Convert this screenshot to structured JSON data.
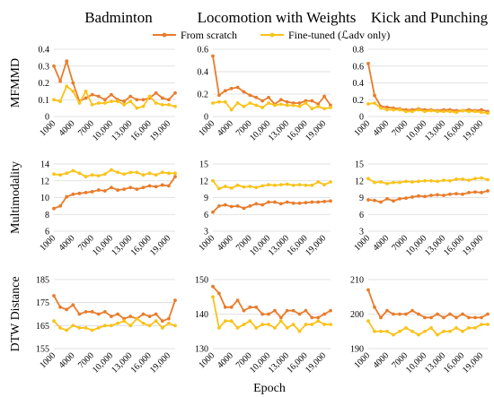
{
  "chart_data": {
    "type": "line",
    "x_tick_labels": [
      "1000",
      "4000",
      "7000",
      "10,000",
      "13,000",
      "16,000",
      "19,000"
    ],
    "x_title": "Epoch",
    "columns": [
      "Badminton",
      "Locomotion with Weights",
      "Kick and Punching"
    ],
    "rows": [
      "MFMMD",
      "Multimodality",
      "DTW Distance"
    ],
    "legend": {
      "placement": "top-center",
      "items": [
        {
          "label": "From scratch",
          "color": "#E87C2C"
        },
        {
          "label": "Fine-tuned (ℒadv only)",
          "color": "#F9C31B"
        }
      ]
    },
    "x": [
      1000,
      2000,
      3000,
      4000,
      5000,
      6000,
      7000,
      8000,
      9000,
      10000,
      11000,
      12000,
      13000,
      14000,
      15000,
      16000,
      17000,
      18000,
      19000,
      20000
    ],
    "panels": [
      {
        "column": "Badminton",
        "row": "MFMMD",
        "yticks": [
          "0",
          "0.1",
          "0.2",
          "0.3",
          "0.4"
        ],
        "ylim": [
          0,
          0.4
        ],
        "series": [
          {
            "values": [
              0.3,
              0.21,
              0.33,
              0.2,
              0.09,
              0.11,
              0.13,
              0.12,
              0.1,
              0.13,
              0.1,
              0.09,
              0.12,
              0.1,
              0.1,
              0.11,
              0.14,
              0.11,
              0.1,
              0.14
            ]
          },
          {
            "values": [
              0.1,
              0.09,
              0.18,
              0.15,
              0.08,
              0.15,
              0.07,
              0.08,
              0.08,
              0.09,
              0.09,
              0.07,
              0.09,
              0.05,
              0.06,
              0.12,
              0.08,
              0.07,
              0.07,
              0.06
            ]
          }
        ]
      },
      {
        "column": "Locomotion with Weights",
        "row": "MFMMD",
        "yticks": [
          "0",
          "0.2",
          "0.4",
          "0.6"
        ],
        "ylim": [
          0,
          0.6
        ],
        "series": [
          {
            "values": [
              0.54,
              0.19,
              0.23,
              0.25,
              0.26,
              0.22,
              0.19,
              0.17,
              0.14,
              0.17,
              0.11,
              0.15,
              0.13,
              0.12,
              0.12,
              0.14,
              0.14,
              0.11,
              0.18,
              0.1
            ]
          },
          {
            "values": [
              0.12,
              0.13,
              0.13,
              0.06,
              0.12,
              0.09,
              0.12,
              0.1,
              0.08,
              0.12,
              0.1,
              0.11,
              0.1,
              0.1,
              0.09,
              0.12,
              0.07,
              0.09,
              0.07,
              0.08
            ]
          }
        ]
      },
      {
        "column": "Kick and Punching",
        "row": "MFMMD",
        "yticks": [
          "0",
          "0.2",
          "0.4",
          "0.6",
          "0.8"
        ],
        "ylim": [
          0,
          0.8
        ],
        "series": [
          {
            "values": [
              0.63,
              0.25,
              0.12,
              0.11,
              0.1,
              0.09,
              0.08,
              0.08,
              0.09,
              0.08,
              0.08,
              0.07,
              0.08,
              0.08,
              0.07,
              0.07,
              0.08,
              0.07,
              0.08,
              0.06
            ]
          },
          {
            "values": [
              0.15,
              0.16,
              0.1,
              0.08,
              0.08,
              0.08,
              0.06,
              0.06,
              0.08,
              0.06,
              0.07,
              0.06,
              0.06,
              0.06,
              0.05,
              0.07,
              0.06,
              0.06,
              0.05,
              0.04
            ]
          }
        ]
      },
      {
        "column": "Badminton",
        "row": "Multimodality",
        "yticks": [
          "6",
          "8",
          "10",
          "12",
          "14"
        ],
        "ylim": [
          6,
          14
        ],
        "series": [
          {
            "values": [
              8.7,
              9.0,
              10.1,
              10.4,
              10.5,
              10.6,
              10.7,
              10.9,
              10.8,
              11.2,
              10.9,
              11.0,
              11.2,
              11.0,
              11.2,
              11.4,
              11.3,
              11.5,
              11.4,
              12.5
            ]
          },
          {
            "values": [
              12.8,
              12.7,
              12.9,
              13.2,
              12.9,
              12.5,
              12.7,
              12.6,
              12.8,
              13.3,
              13.0,
              12.8,
              13.0,
              13.0,
              12.7,
              12.9,
              12.7,
              13.0,
              12.9,
              12.9
            ]
          }
        ]
      },
      {
        "column": "Locomotion with Weights",
        "row": "Multimodality",
        "yticks": [
          "3",
          "6",
          "9",
          "12",
          "15"
        ],
        "ylim": [
          3,
          15
        ],
        "series": [
          {
            "values": [
              6.4,
              7.5,
              7.7,
              7.4,
              7.5,
              7.1,
              7.5,
              7.9,
              7.7,
              8.2,
              8.2,
              7.9,
              8.2,
              8.0,
              8.0,
              8.1,
              8.2,
              8.2,
              8.3,
              8.4
            ]
          },
          {
            "values": [
              12.0,
              10.6,
              11.0,
              10.7,
              11.2,
              10.9,
              11.0,
              10.8,
              11.1,
              11.3,
              11.2,
              11.3,
              11.4,
              11.2,
              11.3,
              11.2,
              11.2,
              11.8,
              11.3,
              11.8
            ]
          }
        ]
      },
      {
        "column": "Kick and Punching",
        "row": "Multimodality",
        "yticks": [
          "3",
          "6",
          "9",
          "12",
          "15"
        ],
        "ylim": [
          3,
          15
        ],
        "series": [
          {
            "values": [
              8.6,
              8.5,
              8.2,
              8.8,
              8.4,
              8.8,
              8.9,
              9.1,
              9.3,
              9.2,
              9.4,
              9.5,
              9.4,
              9.6,
              9.7,
              9.6,
              9.9,
              10.0,
              9.9,
              10.2
            ]
          },
          {
            "values": [
              12.4,
              11.7,
              11.8,
              11.5,
              11.7,
              11.7,
              11.9,
              11.8,
              11.9,
              12.0,
              12.0,
              11.9,
              12.1,
              12.0,
              12.3,
              12.3,
              12.1,
              12.4,
              12.5,
              12.2
            ]
          }
        ]
      },
      {
        "column": "Badminton",
        "row": "DTW Distance",
        "yticks": [
          "155",
          "165",
          "175",
          "185"
        ],
        "ylim": [
          155,
          185
        ],
        "series": [
          {
            "values": [
              178,
              173,
              172,
              174,
              170,
              171,
              171,
              170,
              171,
              169,
              170,
              168,
              169,
              168,
              170,
              169,
              170,
              167,
              168,
              176
            ]
          },
          {
            "values": [
              167,
              164,
              163,
              165,
              164,
              164,
              163,
              164,
              165,
              165,
              166,
              167,
              165,
              168,
              166,
              165,
              167,
              164,
              166,
              165
            ]
          }
        ]
      },
      {
        "column": "Locomotion with Weights",
        "row": "DTW Distance",
        "yticks": [
          "130",
          "140",
          "150"
        ],
        "ylim": [
          130,
          150
        ],
        "series": [
          {
            "values": [
              148,
              146,
              142,
              142,
              144,
              141,
              142,
              142,
              140,
              140,
              141,
              139,
              141,
              141,
              140,
              141,
              139,
              139,
              140,
              141
            ]
          },
          {
            "values": [
              145,
              136,
              138,
              138,
              136,
              137,
              138,
              136,
              137,
              137,
              136,
              138,
              136,
              137,
              135,
              137,
              137,
              138,
              137,
              137
            ]
          }
        ]
      },
      {
        "column": "Kick and Punching",
        "row": "DTW Distance",
        "yticks": [
          "190",
          "200",
          "210"
        ],
        "ylim": [
          190,
          210
        ],
        "series": [
          {
            "values": [
              207,
              202,
              199,
              201,
              200,
              200,
              200,
              201,
              200,
              199,
              199,
              200,
              199,
              200,
              199,
              200,
              199,
              199,
              199,
              200
            ]
          },
          {
            "values": [
              198,
              195,
              195,
              195,
              194,
              195,
              196,
              195,
              194,
              195,
              196,
              194,
              195,
              195,
              196,
              195,
              196,
              196,
              197,
              197
            ]
          }
        ]
      }
    ]
  }
}
